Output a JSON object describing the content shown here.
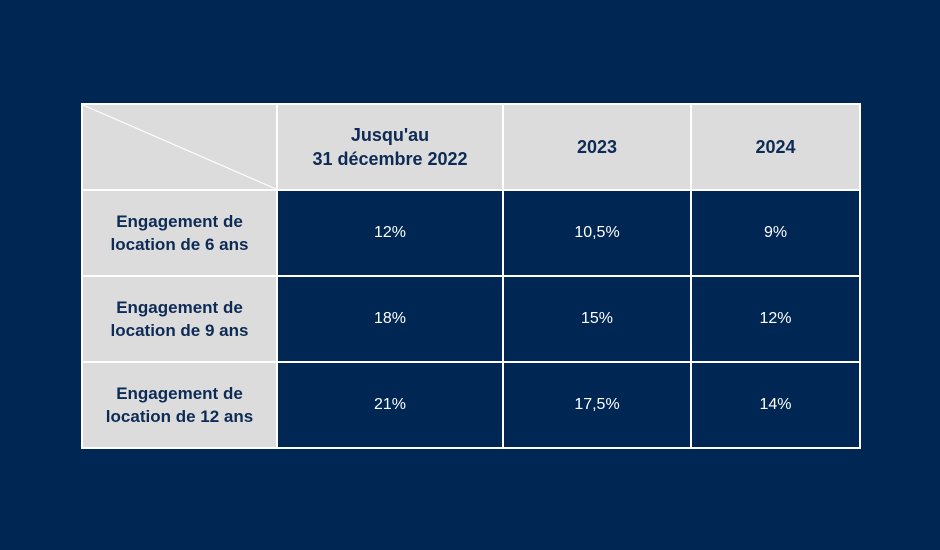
{
  "colors": {
    "background": "#002653",
    "header_bg": "#dcdcdc",
    "header_text": "#0d2b55",
    "value_text": "#ffffff",
    "grid": "#ffffff"
  },
  "chart_data": {
    "type": "table",
    "columns": [
      {
        "line1": "Jusqu'au",
        "line2": "31 décembre 2022"
      },
      {
        "line1": "2023",
        "line2": ""
      },
      {
        "line1": "2024",
        "line2": ""
      }
    ],
    "rows": [
      {
        "line1": "Engagement de",
        "line2": "location de 6 ans",
        "values": [
          "12%",
          "10,5%",
          "9%"
        ]
      },
      {
        "line1": "Engagement de",
        "line2": "location de 9 ans",
        "values": [
          "18%",
          "15%",
          "12%"
        ]
      },
      {
        "line1": "Engagement de",
        "line2": "location de 12 ans",
        "values": [
          "21%",
          "17,5%",
          "14%"
        ]
      }
    ]
  }
}
